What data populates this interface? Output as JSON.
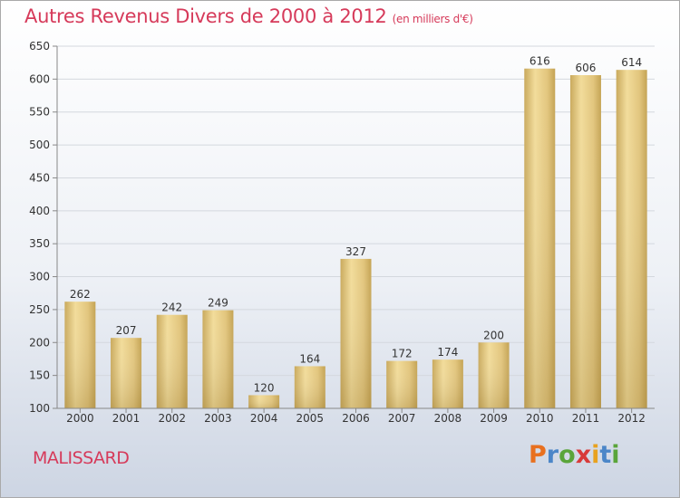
{
  "title": "Autres Revenus Divers de 2000 à 2012",
  "unit": "(en milliers d'€)",
  "place": "MALISSARD",
  "logo": {
    "letters": [
      "P",
      "r",
      "o",
      "x",
      "i",
      "t",
      "i"
    ],
    "colors": [
      "#e8701f",
      "#4b86c8",
      "#5aa53a",
      "#d83a3a",
      "#e8a21f",
      "#4b86c8",
      "#5aa53a"
    ]
  },
  "colors": {
    "accent": "#d63a5a",
    "bar": "#e6c97a"
  },
  "chart_data": {
    "type": "bar",
    "categories": [
      "2000",
      "2001",
      "2002",
      "2003",
      "2004",
      "2005",
      "2006",
      "2007",
      "2008",
      "2009",
      "2010",
      "2011",
      "2012"
    ],
    "values": [
      262,
      207,
      242,
      249,
      120,
      164,
      327,
      172,
      174,
      200,
      616,
      606,
      614
    ],
    "ylim": [
      100,
      650
    ],
    "yticks": [
      100,
      150,
      200,
      250,
      300,
      350,
      400,
      450,
      500,
      550,
      600,
      650
    ],
    "grid": true
  }
}
